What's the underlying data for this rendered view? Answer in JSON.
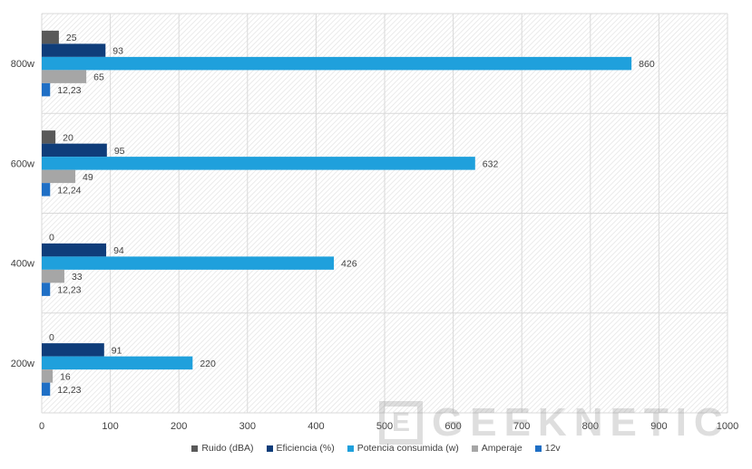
{
  "chart_data": {
    "type": "bar",
    "orientation": "horizontal",
    "categories": [
      "800w",
      "600w",
      "400w",
      "200w"
    ],
    "series": [
      {
        "name": "Ruido (dBA)",
        "color": "#595959",
        "values": [
          25,
          20,
          0,
          0
        ],
        "labels": [
          "25",
          "20",
          "0",
          "0"
        ]
      },
      {
        "name": "Eficiencia (%)",
        "color": "#0f3d7a",
        "values": [
          93,
          95,
          94,
          91
        ],
        "labels": [
          "93",
          "95",
          "94",
          "91"
        ]
      },
      {
        "name": "Potencia consumida (w)",
        "color": "#1fa0dc",
        "values": [
          860,
          632,
          426,
          220
        ],
        "labels": [
          "860",
          "632",
          "426",
          "220"
        ]
      },
      {
        "name": "Amperaje",
        "color": "#a6a6a6",
        "values": [
          65,
          49,
          33,
          16
        ],
        "labels": [
          "65",
          "49",
          "33",
          "16"
        ]
      },
      {
        "name": "12v",
        "color": "#1f6fc5",
        "values": [
          12.23,
          12.24,
          12.23,
          12.23
        ],
        "labels": [
          "12,23",
          "12,24",
          "12,23",
          "12,23"
        ]
      }
    ],
    "xlim": [
      0,
      1000
    ],
    "xticks": [
      "0",
      "100",
      "200",
      "300",
      "400",
      "500",
      "600",
      "700",
      "800",
      "900",
      "1000"
    ],
    "grid": true,
    "legend_position": "bottom"
  },
  "watermark": {
    "box_letter": "E",
    "text": "GEEKNETIC"
  }
}
